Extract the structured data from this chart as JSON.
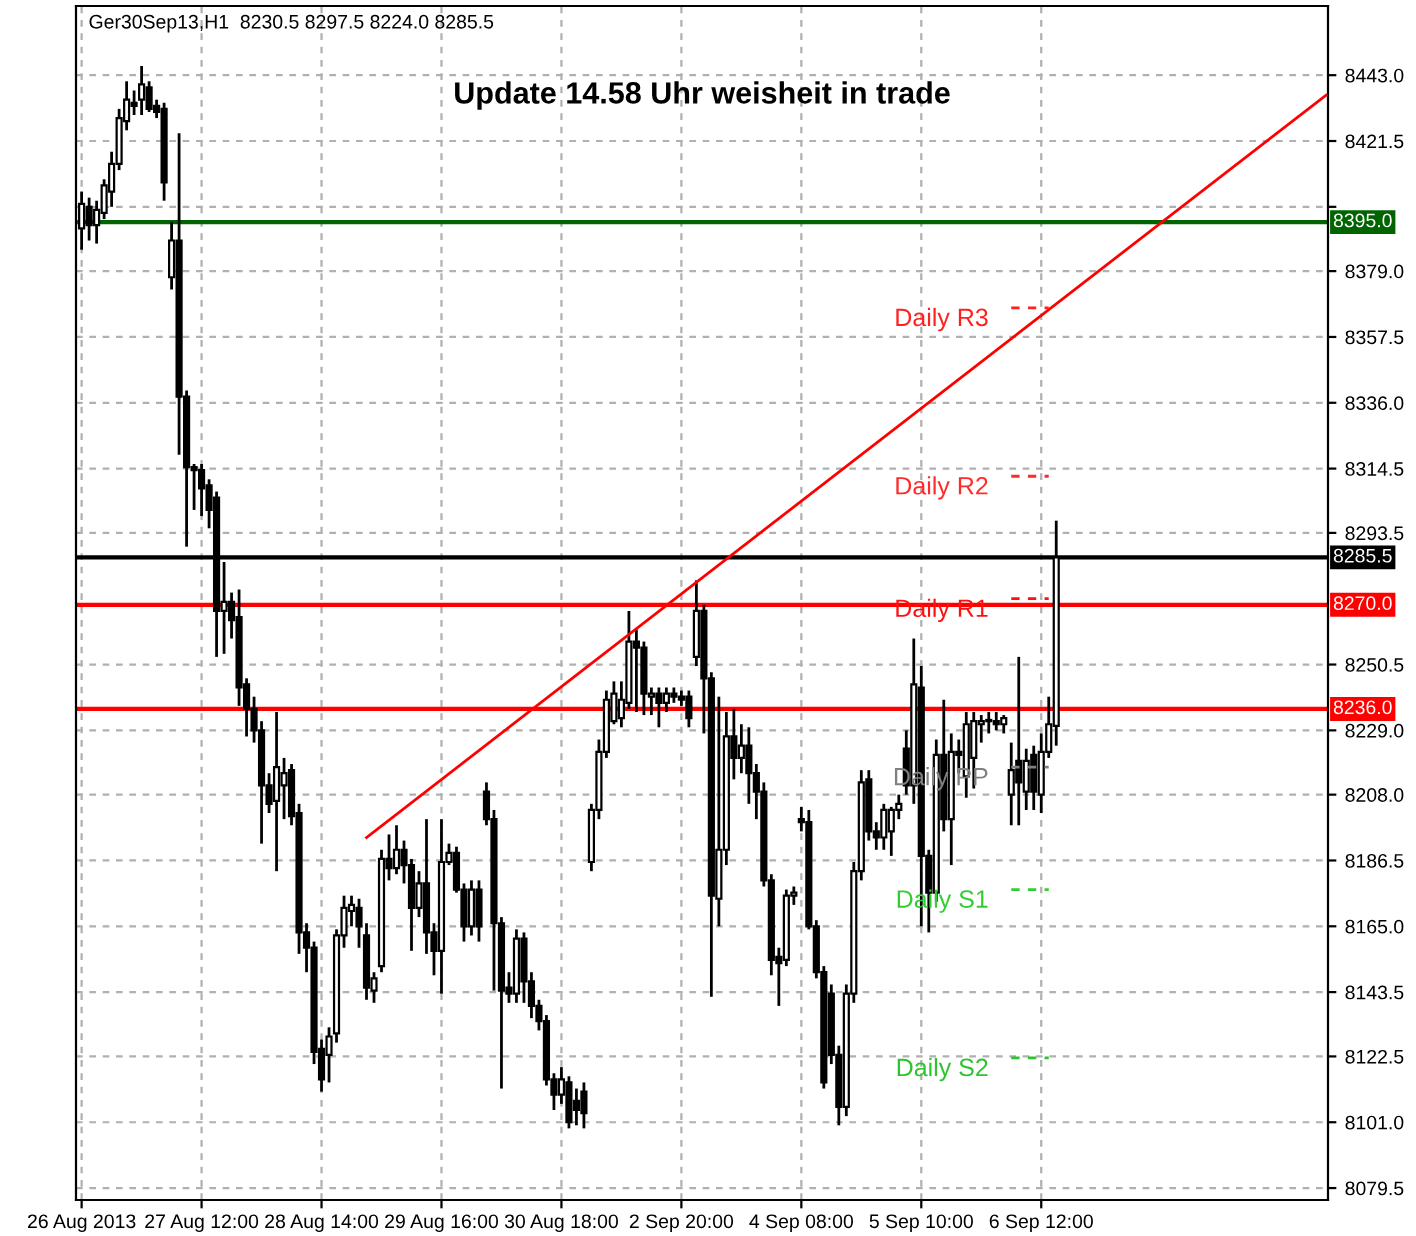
{
  "chart_data": {
    "type": "candlestick",
    "title": "Update 14.58 Uhr weisheit in trade",
    "subtitle": "Ger30Sep13,H1  8230.5 8297.5 8224.0 8285.5",
    "color": "#000000",
    "categories": [
      "26 Aug 2013",
      null,
      null,
      null,
      null,
      null,
      null,
      null,
      null,
      null,
      null,
      null,
      null,
      null,
      null,
      null,
      "27 Aug 12:00",
      null,
      null,
      null,
      null,
      null,
      null,
      null,
      null,
      null,
      null,
      null,
      null,
      null,
      null,
      null,
      "28 Aug 14:00",
      null,
      null,
      null,
      null,
      null,
      null,
      null,
      null,
      null,
      null,
      null,
      null,
      null,
      null,
      null,
      "29 Aug 16:00",
      null,
      null,
      null,
      null,
      null,
      null,
      null,
      null,
      null,
      null,
      null,
      null,
      null,
      null,
      null,
      "30 Aug 18:00",
      null,
      null,
      null,
      null,
      null,
      null,
      null,
      null,
      null,
      null,
      null,
      null,
      null,
      null,
      null,
      "2 Sep 20:00",
      null,
      null,
      null,
      null,
      null,
      null,
      null,
      null,
      null,
      null,
      null,
      null,
      null,
      null,
      null,
      "4 Sep 08:00",
      null,
      null,
      null,
      null,
      null,
      null,
      null,
      null,
      null,
      null,
      null,
      null,
      null,
      null,
      null,
      "5 Sep 10:00",
      null,
      null,
      null,
      null,
      null,
      null,
      null,
      null,
      null,
      null,
      null,
      null,
      null,
      null,
      null,
      "6 Sep 12:00",
      null,
      null,
      null,
      null,
      null,
      null,
      null,
      null,
      null,
      null,
      null,
      null,
      null,
      null,
      null,
      null,
      null,
      null,
      null,
      null,
      null,
      null,
      null,
      null,
      null,
      null,
      null,
      null,
      null,
      null,
      null,
      null,
      null,
      null,
      null,
      null,
      null,
      null
    ],
    "ohlc": [
      [
        8393,
        8405,
        8386,
        8401
      ],
      [
        8400,
        8403,
        8389,
        8394
      ],
      [
        8394,
        8402,
        8388,
        8399
      ],
      [
        8398,
        8409,
        8396,
        8407
      ],
      [
        8405,
        8418,
        8400,
        8414
      ],
      [
        8414,
        8432,
        8412,
        8429
      ],
      [
        8428,
        8441,
        8425,
        8435
      ],
      [
        8434,
        8438,
        8430,
        8433
      ],
      [
        8435,
        8446,
        8430,
        8440
      ],
      [
        8439,
        8441,
        8431,
        8432
      ],
      [
        8433,
        8435,
        8429,
        8431
      ],
      [
        8432,
        8434,
        8402,
        8408
      ],
      [
        8377,
        8395,
        8373,
        8389
      ],
      [
        8389,
        8424,
        8319,
        8338
      ],
      [
        8338,
        8340,
        8289,
        8315
      ],
      [
        8315,
        8316,
        8301,
        8314
      ],
      [
        8314,
        8316,
        8299,
        8308
      ],
      [
        8309,
        8311,
        8295,
        8301
      ],
      [
        8305,
        8307,
        8253,
        8268
      ],
      [
        8268,
        8284,
        8254,
        8271
      ],
      [
        8271,
        8274,
        8259,
        8265
      ],
      [
        8266,
        8275,
        8237,
        8243
      ],
      [
        8244,
        8246,
        8227,
        8236
      ],
      [
        8236,
        8240,
        8225,
        8229
      ],
      [
        8229,
        8232,
        8192,
        8211
      ],
      [
        8211,
        8215,
        8202,
        8205
      ],
      [
        8206,
        8235,
        8183,
        8217
      ],
      [
        8211,
        8220,
        8200,
        8215
      ],
      [
        8216,
        8218,
        8198,
        8201
      ],
      [
        8202,
        8205,
        8156,
        8163
      ],
      [
        8163,
        8166,
        8150,
        8158
      ],
      [
        8158,
        8160,
        8120,
        8124
      ],
      [
        8125,
        8128,
        8111,
        8115
      ],
      [
        8123,
        8132,
        8114,
        8129
      ],
      [
        8130,
        8164,
        8127,
        8162
      ],
      [
        8162,
        8175,
        8158,
        8171
      ],
      [
        8170,
        8175,
        8165,
        8172
      ],
      [
        8171,
        8174,
        8158,
        8165
      ],
      [
        8162,
        8166,
        8141,
        8145
      ],
      [
        8144,
        8150,
        8140,
        8148
      ],
      [
        8152,
        8190,
        8150,
        8187
      ],
      [
        8187,
        8195,
        8180,
        8184
      ],
      [
        8184,
        8198,
        8182,
        8190
      ],
      [
        8190,
        8193,
        8179,
        8185
      ],
      [
        8185,
        8187,
        8157,
        8171
      ],
      [
        8171,
        8183,
        8168,
        8179
      ],
      [
        8179,
        8200,
        8156,
        8163
      ],
      [
        8163,
        8166,
        8149,
        8157
      ],
      [
        8157,
        8200,
        8143,
        8186
      ],
      [
        8186,
        8192,
        8185,
        8189
      ],
      [
        8189,
        8191,
        8176,
        8177
      ],
      [
        8177,
        8179,
        8160,
        8165
      ],
      [
        8165,
        8180,
        8162,
        8177
      ],
      [
        8177,
        8180,
        8160,
        8165
      ],
      [
        8209,
        8212,
        8198,
        8200
      ],
      [
        8200,
        8203,
        8144,
        8166
      ],
      [
        8166,
        8168,
        8112,
        8144
      ],
      [
        8145,
        8150,
        8140,
        8143
      ],
      [
        8143,
        8164,
        8140,
        8161
      ],
      [
        8161,
        8163,
        8140,
        8147
      ],
      [
        8147,
        8150,
        8135,
        8139
      ],
      [
        8139,
        8141,
        8131,
        8134
      ],
      [
        8134,
        8136,
        8113,
        8115
      ],
      [
        8115,
        8117,
        8105,
        8110
      ],
      [
        8110,
        8119,
        8107,
        8115
      ],
      [
        8114,
        8116,
        8099,
        8101
      ],
      [
        8108,
        8112,
        8100,
        8105
      ],
      [
        8111,
        8114,
        8099,
        8104
      ],
      [
        8186,
        8205,
        8183,
        8203
      ],
      [
        8203,
        8226,
        8200,
        8222
      ],
      [
        8222,
        8242,
        8220,
        8239
      ],
      [
        8232,
        8245,
        8231,
        8241
      ],
      [
        8233,
        8245,
        8230,
        8239
      ],
      [
        8238,
        8268,
        8236,
        8258
      ],
      [
        8258,
        8262,
        8235,
        8256
      ],
      [
        8256,
        8258,
        8234,
        8241
      ],
      [
        8240,
        8243,
        8234,
        8241
      ],
      [
        8241,
        8243,
        8230,
        8238
      ],
      [
        8238,
        8243,
        8235,
        8241
      ],
      [
        8241,
        8243,
        8238,
        8240
      ],
      [
        8240,
        8242,
        8237,
        8239
      ],
      [
        8240,
        8242,
        8230,
        8233
      ],
      [
        8253,
        8278,
        8250,
        8268
      ],
      [
        8268,
        8270,
        8228,
        8246
      ],
      [
        8246,
        8248,
        8142,
        8175
      ],
      [
        8174,
        8240,
        8165,
        8190
      ],
      [
        8190,
        8235,
        8185,
        8227
      ],
      [
        8227,
        8236,
        8213,
        8220
      ],
      [
        8220,
        8231,
        8215,
        8224
      ],
      [
        8224,
        8230,
        8205,
        8215
      ],
      [
        8215,
        8218,
        8200,
        8209
      ],
      [
        8209,
        8212,
        8178,
        8180
      ],
      [
        8180,
        8182,
        8149,
        8154
      ],
      [
        8155,
        8158,
        8139,
        8153
      ],
      [
        8154,
        8177,
        8152,
        8175
      ],
      [
        8175,
        8178,
        8172,
        8176
      ],
      [
        8200,
        8204,
        8196,
        8199
      ],
      [
        8199,
        8203,
        8164,
        8165
      ],
      [
        8165,
        8167,
        8148,
        8150
      ],
      [
        8150,
        8152,
        8112,
        8114
      ],
      [
        8143,
        8146,
        8120,
        8123
      ],
      [
        8123,
        8126,
        8100,
        8106
      ],
      [
        8106,
        8146,
        8103,
        8143
      ],
      [
        8143,
        8186,
        8140,
        8183
      ],
      [
        8183,
        8216,
        8180,
        8212
      ],
      [
        8213,
        8216,
        8193,
        8196
      ],
      [
        8196,
        8199,
        8190,
        8194
      ],
      [
        8194,
        8205,
        8190,
        8203
      ],
      [
        8196,
        8204,
        8188,
        8203
      ],
      [
        8203,
        8208,
        8200,
        8205
      ],
      [
        8223,
        8229,
        8208,
        8211
      ],
      [
        8211,
        8259,
        8205,
        8244
      ],
      [
        8243,
        8250,
        8165,
        8188
      ],
      [
        8188,
        8190,
        8163,
        8176
      ],
      [
        8176,
        8226,
        8173,
        8221
      ],
      [
        8221,
        8239,
        8196,
        8200
      ],
      [
        8200,
        8228,
        8185,
        8222
      ],
      [
        8222,
        8226,
        8215,
        8221
      ],
      [
        8214,
        8235,
        8207,
        8231
      ],
      [
        8220,
        8235,
        8210,
        8232
      ],
      [
        8231,
        8234,
        8225,
        8232
      ],
      [
        8232,
        8235,
        8228,
        8232
      ],
      [
        8232,
        8235,
        8229,
        8231
      ],
      [
        8231,
        8234,
        8228,
        8233
      ],
      [
        8208,
        8225,
        8198,
        8216
      ],
      [
        8219,
        8253,
        8198,
        8212
      ],
      [
        8209,
        8223,
        8203,
        8219
      ],
      [
        8221,
        8224,
        8203,
        8209
      ],
      [
        8208,
        8228,
        8202,
        8222
      ],
      [
        8222,
        8240,
        8220,
        8231
      ],
      [
        8230.5,
        8297.5,
        8224.0,
        8285.5
      ],
      null,
      null,
      null,
      null,
      null,
      null,
      null,
      null,
      null,
      null,
      null,
      null,
      null,
      null,
      null,
      null,
      null,
      null,
      null,
      null,
      null,
      null,
      null,
      null,
      null,
      null,
      null,
      null,
      null,
      null,
      null,
      null,
      null,
      null,
      null,
      null
    ],
    "series": [
      {
        "type": "line",
        "color": "#ff0000",
        "line_style": "solid",
        "values": [
          null,
          null,
          null,
          null,
          null,
          null,
          null,
          null,
          null,
          null,
          null,
          null,
          null,
          null,
          null,
          null,
          null,
          null,
          null,
          null,
          null,
          null,
          null,
          null,
          null,
          null,
          null,
          null,
          null,
          null,
          null,
          null,
          null,
          null,
          null,
          null,
          null,
          null,
          8194,
          null,
          null,
          null,
          null,
          null,
          null,
          null,
          null,
          null,
          null,
          null,
          null,
          null,
          null,
          null,
          null,
          null,
          null,
          null,
          null,
          null,
          null,
          null,
          null,
          null,
          null,
          null,
          null,
          null,
          null,
          null,
          null,
          null,
          null,
          null,
          null,
          null,
          null,
          null,
          null,
          null,
          null,
          null,
          null,
          null,
          null,
          null,
          null,
          null,
          null,
          null,
          null,
          null,
          null,
          null,
          null,
          null,
          null,
          null,
          null,
          null,
          null,
          null,
          null,
          null,
          null,
          null,
          null,
          null,
          null,
          null,
          null,
          null,
          null,
          null,
          null,
          null,
          null,
          null,
          null,
          null,
          null,
          null,
          null,
          null,
          null,
          null,
          null,
          null,
          null,
          null,
          null,
          null,
          null,
          null,
          null,
          null,
          null,
          null,
          null,
          null,
          null,
          null,
          null,
          null,
          null,
          null,
          null,
          null,
          null,
          null,
          null,
          null,
          null,
          null,
          null,
          null,
          null,
          null,
          null,
          null,
          null,
          null,
          null,
          null,
          null,
          null,
          8436.5
        ]
      },
      {
        "type": "line",
        "name": "Daily R3",
        "color": "#ff2020",
        "line_style": "dashed",
        "values": [
          null,
          null,
          null,
          null,
          null,
          null,
          null,
          null,
          null,
          null,
          null,
          null,
          null,
          null,
          null,
          null,
          null,
          null,
          null,
          null,
          null,
          null,
          null,
          null,
          null,
          null,
          null,
          null,
          null,
          null,
          null,
          null,
          null,
          null,
          null,
          null,
          null,
          null,
          null,
          null,
          null,
          null,
          null,
          null,
          null,
          null,
          null,
          null,
          null,
          null,
          null,
          null,
          null,
          null,
          null,
          null,
          null,
          null,
          null,
          null,
          null,
          null,
          null,
          null,
          null,
          null,
          null,
          null,
          null,
          null,
          null,
          null,
          null,
          null,
          null,
          null,
          null,
          null,
          null,
          null,
          null,
          null,
          null,
          null,
          null,
          null,
          null,
          null,
          null,
          null,
          null,
          null,
          null,
          null,
          null,
          null,
          null,
          null,
          null,
          null,
          null,
          null,
          null,
          null,
          null,
          null,
          null,
          null,
          null,
          null,
          null,
          null,
          null,
          null,
          null,
          null,
          null,
          null,
          null,
          null,
          null,
          null,
          null,
          null,
          8367,
          8367,
          8367,
          8367,
          8367,
          8367,
          null,
          null,
          null,
          null,
          null,
          null,
          null,
          null,
          null,
          null,
          null,
          null,
          null,
          null,
          null,
          null,
          null,
          null,
          null,
          null,
          null,
          null,
          null,
          null,
          null,
          null,
          null,
          null,
          null,
          null,
          null,
          null,
          null,
          null,
          null,
          null,
          null
        ]
      },
      {
        "type": "line",
        "name": "Daily R2",
        "color": "#ff2a2a",
        "line_style": "dashed",
        "values": [
          null,
          null,
          null,
          null,
          null,
          null,
          null,
          null,
          null,
          null,
          null,
          null,
          null,
          null,
          null,
          null,
          null,
          null,
          null,
          null,
          null,
          null,
          null,
          null,
          null,
          null,
          null,
          null,
          null,
          null,
          null,
          null,
          null,
          null,
          null,
          null,
          null,
          null,
          null,
          null,
          null,
          null,
          null,
          null,
          null,
          null,
          null,
          null,
          null,
          null,
          null,
          null,
          null,
          null,
          null,
          null,
          null,
          null,
          null,
          null,
          null,
          null,
          null,
          null,
          null,
          null,
          null,
          null,
          null,
          null,
          null,
          null,
          null,
          null,
          null,
          null,
          null,
          null,
          null,
          null,
          null,
          null,
          null,
          null,
          null,
          null,
          null,
          null,
          null,
          null,
          null,
          null,
          null,
          null,
          null,
          null,
          null,
          null,
          null,
          null,
          null,
          null,
          null,
          null,
          null,
          null,
          null,
          null,
          null,
          null,
          null,
          null,
          null,
          null,
          null,
          null,
          null,
          null,
          null,
          null,
          null,
          null,
          null,
          null,
          8312,
          8312,
          8312,
          8312,
          8312,
          8312,
          null,
          null,
          null,
          null,
          null,
          null,
          null,
          null,
          null,
          null,
          null,
          null,
          null,
          null,
          null,
          null,
          null,
          null,
          null,
          null,
          null,
          null,
          null,
          null,
          null,
          null,
          null,
          null,
          null,
          null,
          null,
          null,
          null,
          null,
          null,
          null,
          null
        ]
      },
      {
        "type": "line",
        "name": "Daily R1",
        "color": "#ff1010",
        "line_style": "dashed",
        "values": [
          null,
          null,
          null,
          null,
          null,
          null,
          null,
          null,
          null,
          null,
          null,
          null,
          null,
          null,
          null,
          null,
          null,
          null,
          null,
          null,
          null,
          null,
          null,
          null,
          null,
          null,
          null,
          null,
          null,
          null,
          null,
          null,
          null,
          null,
          null,
          null,
          null,
          null,
          null,
          null,
          null,
          null,
          null,
          null,
          null,
          null,
          null,
          null,
          null,
          null,
          null,
          null,
          null,
          null,
          null,
          null,
          null,
          null,
          null,
          null,
          null,
          null,
          null,
          null,
          null,
          null,
          null,
          null,
          null,
          null,
          null,
          null,
          null,
          null,
          null,
          null,
          null,
          null,
          null,
          null,
          null,
          null,
          null,
          null,
          null,
          null,
          null,
          null,
          null,
          null,
          null,
          null,
          null,
          null,
          null,
          null,
          null,
          null,
          null,
          null,
          null,
          null,
          null,
          null,
          null,
          null,
          null,
          null,
          null,
          null,
          null,
          null,
          null,
          null,
          null,
          null,
          null,
          null,
          null,
          null,
          null,
          null,
          null,
          null,
          8272,
          8272,
          8272,
          8272,
          8272,
          8272,
          null,
          null,
          null,
          null,
          null,
          null,
          null,
          null,
          null,
          null,
          null,
          null,
          null,
          null,
          null,
          null,
          null,
          null,
          null,
          null,
          null,
          null,
          null,
          null,
          null,
          null,
          null,
          null,
          null,
          null,
          null,
          null,
          null,
          null,
          null,
          null,
          null
        ]
      },
      {
        "type": "line",
        "name": "Daily PP",
        "color": "#808080",
        "line_style": "dashed",
        "values": [
          null,
          null,
          null,
          null,
          null,
          null,
          null,
          null,
          null,
          null,
          null,
          null,
          null,
          null,
          null,
          null,
          null,
          null,
          null,
          null,
          null,
          null,
          null,
          null,
          null,
          null,
          null,
          null,
          null,
          null,
          null,
          null,
          null,
          null,
          null,
          null,
          null,
          null,
          null,
          null,
          null,
          null,
          null,
          null,
          null,
          null,
          null,
          null,
          null,
          null,
          null,
          null,
          null,
          null,
          null,
          null,
          null,
          null,
          null,
          null,
          null,
          null,
          null,
          null,
          null,
          null,
          null,
          null,
          null,
          null,
          null,
          null,
          null,
          null,
          null,
          null,
          null,
          null,
          null,
          null,
          null,
          null,
          null,
          null,
          null,
          null,
          null,
          null,
          null,
          null,
          null,
          null,
          null,
          null,
          null,
          null,
          null,
          null,
          null,
          null,
          null,
          null,
          null,
          null,
          null,
          null,
          null,
          null,
          null,
          null,
          null,
          null,
          null,
          null,
          null,
          null,
          null,
          null,
          null,
          null,
          null,
          null,
          null,
          null,
          8217,
          8217,
          8217,
          8217,
          8217,
          8217,
          null,
          null,
          null,
          null,
          null,
          null,
          null,
          null,
          null,
          null,
          null,
          null,
          null,
          null,
          null,
          null,
          null,
          null,
          null,
          null,
          null,
          null,
          null,
          null,
          null,
          null,
          null,
          null,
          null,
          null,
          null,
          null,
          null,
          null,
          null,
          null,
          null
        ]
      },
      {
        "type": "line",
        "name": "Daily S1",
        "color": "#32cd32",
        "line_style": "dashed",
        "values": [
          null,
          null,
          null,
          null,
          null,
          null,
          null,
          null,
          null,
          null,
          null,
          null,
          null,
          null,
          null,
          null,
          null,
          null,
          null,
          null,
          null,
          null,
          null,
          null,
          null,
          null,
          null,
          null,
          null,
          null,
          null,
          null,
          null,
          null,
          null,
          null,
          null,
          null,
          null,
          null,
          null,
          null,
          null,
          null,
          null,
          null,
          null,
          null,
          null,
          null,
          null,
          null,
          null,
          null,
          null,
          null,
          null,
          null,
          null,
          null,
          null,
          null,
          null,
          null,
          null,
          null,
          null,
          null,
          null,
          null,
          null,
          null,
          null,
          null,
          null,
          null,
          null,
          null,
          null,
          null,
          null,
          null,
          null,
          null,
          null,
          null,
          null,
          null,
          null,
          null,
          null,
          null,
          null,
          null,
          null,
          null,
          null,
          null,
          null,
          null,
          null,
          null,
          null,
          null,
          null,
          null,
          null,
          null,
          null,
          null,
          null,
          null,
          null,
          null,
          null,
          null,
          null,
          null,
          null,
          null,
          null,
          null,
          null,
          null,
          8177,
          8177,
          8177,
          8177,
          8177,
          8177,
          null,
          null,
          null,
          null,
          null,
          null,
          null,
          null,
          null,
          null,
          null,
          null,
          null,
          null,
          null,
          null,
          null,
          null,
          null,
          null,
          null,
          null,
          null,
          null,
          null,
          null,
          null,
          null,
          null,
          null,
          null,
          null,
          null,
          null,
          null,
          null,
          null
        ]
      },
      {
        "type": "line",
        "name": "Daily S2",
        "color": "#2ec42e",
        "line_style": "dashed",
        "values": [
          null,
          null,
          null,
          null,
          null,
          null,
          null,
          null,
          null,
          null,
          null,
          null,
          null,
          null,
          null,
          null,
          null,
          null,
          null,
          null,
          null,
          null,
          null,
          null,
          null,
          null,
          null,
          null,
          null,
          null,
          null,
          null,
          null,
          null,
          null,
          null,
          null,
          null,
          null,
          null,
          null,
          null,
          null,
          null,
          null,
          null,
          null,
          null,
          null,
          null,
          null,
          null,
          null,
          null,
          null,
          null,
          null,
          null,
          null,
          null,
          null,
          null,
          null,
          null,
          null,
          null,
          null,
          null,
          null,
          null,
          null,
          null,
          null,
          null,
          null,
          null,
          null,
          null,
          null,
          null,
          null,
          null,
          null,
          null,
          null,
          null,
          null,
          null,
          null,
          null,
          null,
          null,
          null,
          null,
          null,
          null,
          null,
          null,
          null,
          null,
          null,
          null,
          null,
          null,
          null,
          null,
          null,
          null,
          null,
          null,
          null,
          null,
          null,
          null,
          null,
          null,
          null,
          null,
          null,
          null,
          null,
          null,
          null,
          null,
          8122,
          8122,
          8122,
          8122,
          8122,
          8122,
          null,
          null,
          null,
          null,
          null,
          null,
          null,
          null,
          null,
          null,
          null,
          null,
          null,
          null,
          null,
          null,
          null,
          null,
          null,
          null,
          null,
          null,
          null,
          null,
          null,
          null,
          null,
          null,
          null,
          null,
          null,
          null,
          null,
          null,
          null,
          null,
          null
        ]
      }
    ],
    "ref_lines": [
      {
        "axis": "y",
        "value": 8395.0,
        "label": "8395.0",
        "color": "#006400",
        "line_style": "solid"
      },
      {
        "axis": "y",
        "value": 8285.5,
        "label": "8285.5",
        "color": "#000000",
        "line_style": "solid"
      },
      {
        "axis": "y",
        "value": 8270.0,
        "label": "8270.0",
        "color": "#ff0000",
        "line_style": "solid"
      },
      {
        "axis": "y",
        "value": 8236.0,
        "label": "8236.0",
        "color": "#ff0000",
        "line_style": "solid"
      }
    ],
    "ylim": [
      8075.6,
      8465.6
    ],
    "yticks": [
      {
        "value": 8443,
        "label": "8443.0"
      },
      8421.5,
      {
        "value": 8400,
        "label": null
      },
      {
        "value": 8379,
        "label": "8379.0"
      },
      8357.5,
      {
        "value": 8336,
        "label": "8336.0"
      },
      8314.5,
      8293.5,
      8250.5,
      {
        "value": 8229,
        "label": "8229.0"
      },
      {
        "value": 8208,
        "label": "8208.0"
      },
      8186.5,
      {
        "value": 8165,
        "label": "8165.0"
      },
      8143.5,
      8122.5,
      {
        "value": 8101,
        "label": "8101.0"
      },
      8079.5
    ],
    "grid": true
  }
}
